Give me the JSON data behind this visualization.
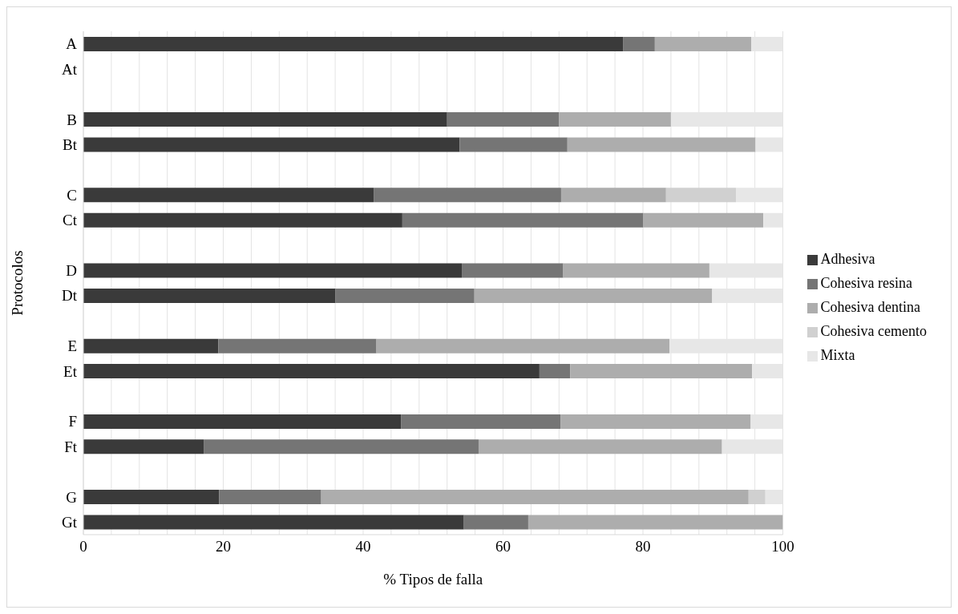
{
  "chart_data": {
    "type": "bar",
    "orientation": "horizontal",
    "stacked": true,
    "xlabel": "% Tipos de falla",
    "ylabel": "Protocolos",
    "categories": [
      "A",
      "At",
      null,
      "B",
      "Bt",
      null,
      "C",
      "Ct",
      null,
      "D",
      "Dt",
      null,
      "E",
      "Et",
      null,
      "F",
      "Ft",
      null,
      "G",
      "Gt"
    ],
    "series": [
      {
        "name": "Adhesiva",
        "color": "#3a3a3a",
        "values": [
          77.2,
          null,
          null,
          52,
          53.8,
          null,
          41.5,
          45.6,
          null,
          54.1,
          36,
          null,
          19.3,
          65.2,
          null,
          45.4,
          17.2,
          null,
          19.4,
          54.4
        ]
      },
      {
        "name": "Cohesiva resina",
        "color": "#757575",
        "values": [
          4.5,
          null,
          null,
          16,
          15.4,
          null,
          26.8,
          34.4,
          null,
          14.5,
          19.9,
          null,
          22.6,
          4.4,
          null,
          22.8,
          39.3,
          null,
          14.6,
          9.2
        ]
      },
      {
        "name": "Cohesiva dentina",
        "color": "#adadad",
        "values": [
          13.8,
          null,
          null,
          16,
          26.9,
          null,
          15,
          17.2,
          null,
          20.9,
          34,
          null,
          41.9,
          26,
          null,
          27.2,
          34.8,
          null,
          61.1,
          36.4
        ]
      },
      {
        "name": "Cohesiva cemento",
        "color": "#d0d0d0",
        "values": [
          0,
          null,
          null,
          0,
          0,
          null,
          10,
          0,
          null,
          0,
          0,
          null,
          0,
          0,
          null,
          0,
          0,
          null,
          2.4,
          0
        ]
      },
      {
        "name": "Mixta",
        "color": "#e7e7e7",
        "values": [
          4.5,
          null,
          null,
          16,
          3.9,
          null,
          6.7,
          2.8,
          null,
          10.5,
          10.1,
          null,
          16.2,
          4.4,
          null,
          4.6,
          8.7,
          null,
          2.5,
          0
        ]
      }
    ],
    "xlim": [
      0,
      100
    ],
    "xticks": [
      0,
      {
        "value": 4,
        "label": null
      },
      {
        "value": 8,
        "label": null
      },
      {
        "value": 12,
        "label": null
      },
      {
        "value": 16,
        "label": null
      },
      20,
      {
        "value": 24,
        "label": null
      },
      {
        "value": 28,
        "label": null
      },
      {
        "value": 32,
        "label": null
      },
      {
        "value": 36,
        "label": null
      },
      40,
      {
        "value": 44,
        "label": null
      },
      {
        "value": 48,
        "label": null
      },
      {
        "value": 52,
        "label": null
      },
      {
        "value": 56,
        "label": null
      },
      60,
      {
        "value": 64,
        "label": null
      },
      {
        "value": 68,
        "label": null
      },
      {
        "value": 72,
        "label": null
      },
      {
        "value": 76,
        "label": null
      },
      80,
      {
        "value": 84,
        "label": null
      },
      {
        "value": 88,
        "label": null
      },
      {
        "value": 92,
        "label": null
      },
      {
        "value": 96,
        "label": null
      },
      100
    ],
    "grid": "x",
    "legend": "right"
  }
}
